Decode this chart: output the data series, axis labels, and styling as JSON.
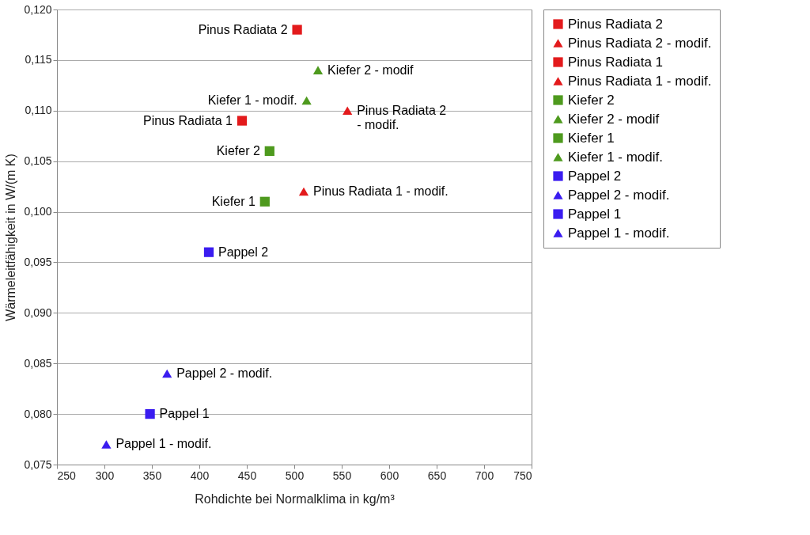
{
  "chart_data": {
    "type": "scatter",
    "xlabel": "Rohdichte bei Normalklima in kg/m³",
    "ylabel": "Wärmeleitfähigkeit in W/(m K)",
    "xlim": [
      250,
      750
    ],
    "xticks": [
      250,
      300,
      350,
      400,
      450,
      500,
      550,
      600,
      650,
      700,
      750
    ],
    "ylim": [
      0.075,
      0.12
    ],
    "yticks": [
      {
        "value": 0.075,
        "label": "0,075"
      },
      {
        "value": 0.08,
        "label": "0,080"
      },
      {
        "value": 0.085,
        "label": "0,085"
      },
      {
        "value": 0.09,
        "label": "0,090"
      },
      {
        "value": 0.095,
        "label": "0,095"
      },
      {
        "value": 0.1,
        "label": "0,100"
      },
      {
        "value": 0.105,
        "label": "0,105"
      },
      {
        "value": 0.11,
        "label": "0,110"
      },
      {
        "value": 0.115,
        "label": "0,115"
      },
      {
        "value": 0.12,
        "label": "0,120"
      }
    ],
    "grid": "y",
    "legend": "right",
    "series": [
      {
        "name": "Pinus Radiata 2",
        "color": "#e31a1c",
        "marker": "square",
        "x": [
          503
        ],
        "values": [
          0.118
        ]
      },
      {
        "name": "Pinus Radiata 2 - modif.",
        "color": "#e31a1c",
        "marker": "triangle",
        "x": [
          556
        ],
        "values": [
          0.11
        ]
      },
      {
        "name": "Pinus Radiata 1",
        "color": "#e31a1c",
        "marker": "square",
        "x": [
          445
        ],
        "values": [
          0.109
        ]
      },
      {
        "name": "Pinus Radiata 1 - modif.",
        "color": "#e31a1c",
        "marker": "triangle",
        "x": [
          510
        ],
        "values": [
          0.102
        ]
      },
      {
        "name": "Kiefer 2",
        "color": "#4e9a1e",
        "marker": "square",
        "x": [
          474
        ],
        "values": [
          0.106
        ]
      },
      {
        "name": "Kiefer 2 - modif",
        "color": "#4e9a1e",
        "marker": "triangle",
        "x": [
          525
        ],
        "values": [
          0.114
        ]
      },
      {
        "name": "Kiefer 1",
        "color": "#4e9a1e",
        "marker": "square",
        "x": [
          469
        ],
        "values": [
          0.101
        ]
      },
      {
        "name": "Kiefer 1 - modif.",
        "color": "#4e9a1e",
        "marker": "triangle",
        "x": [
          513
        ],
        "values": [
          0.111
        ]
      },
      {
        "name": "Pappel 2",
        "color": "#3a1cf0",
        "marker": "square",
        "x": [
          410
        ],
        "values": [
          0.096
        ]
      },
      {
        "name": "Pappel 2 - modif.",
        "color": "#3a1cf0",
        "marker": "triangle",
        "x": [
          366
        ],
        "values": [
          0.084
        ]
      },
      {
        "name": "Pappel 1",
        "color": "#3a1cf0",
        "marker": "square",
        "x": [
          348
        ],
        "values": [
          0.08
        ]
      },
      {
        "name": "Pappel 1 - modif.",
        "color": "#3a1cf0",
        "marker": "triangle",
        "x": [
          302
        ],
        "values": [
          0.077
        ]
      }
    ]
  }
}
